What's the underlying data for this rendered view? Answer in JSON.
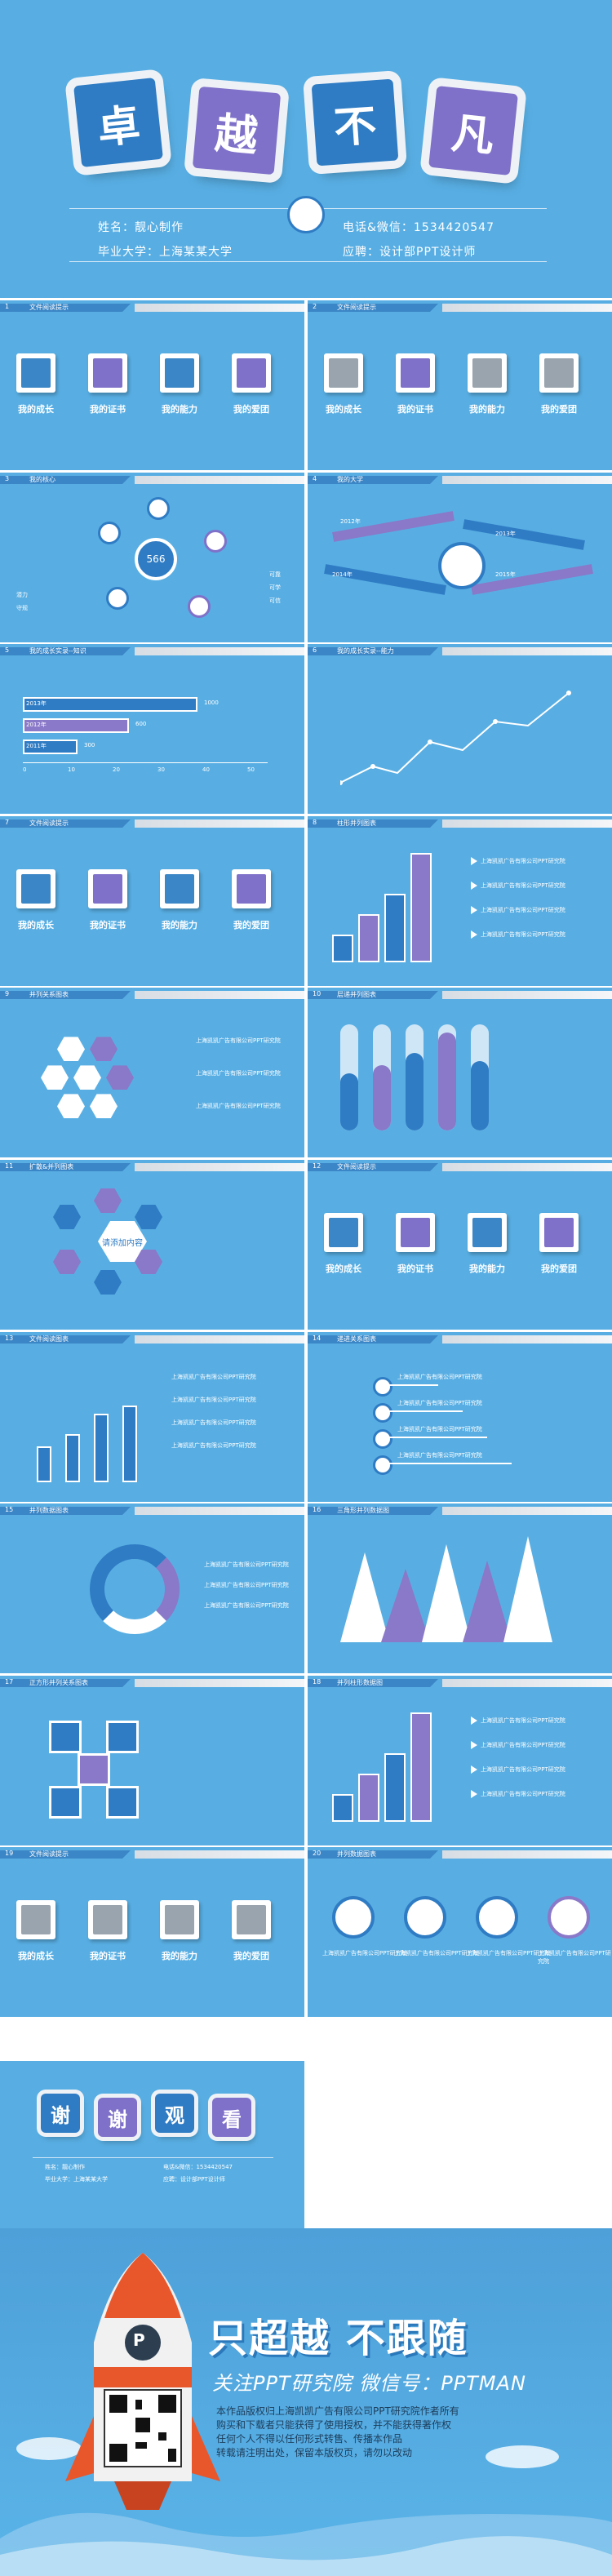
{
  "cover": {
    "tiles": [
      "卓",
      "越",
      "不",
      "凡"
    ],
    "name_label": "姓名：靓心制作",
    "school_label": "毕业大学：上海某某大学",
    "phone_label": "电话&微信：1534420547",
    "job_label": "应聘：设计部PPT设计师"
  },
  "panel_headers": [
    {
      "num": "1",
      "title": "文件阅读提示"
    },
    {
      "num": "2",
      "title": "文件阅读提示"
    },
    {
      "num": "3",
      "title": "我的核心"
    },
    {
      "num": "4",
      "title": "我的大学"
    },
    {
      "num": "5",
      "title": "我的成长实录--知识"
    },
    {
      "num": "6",
      "title": "我的成长实录--能力"
    },
    {
      "num": "7",
      "title": "文件阅读提示"
    },
    {
      "num": "8",
      "title": "柱形并列图表"
    },
    {
      "num": "9",
      "title": "并列关系图表"
    },
    {
      "num": "10",
      "title": "层递并列图表"
    },
    {
      "num": "11",
      "title": "扩散&并列图表"
    },
    {
      "num": "12",
      "title": "文件阅读提示"
    },
    {
      "num": "13",
      "title": "文件阅读图表"
    },
    {
      "num": "14",
      "title": "递进关系图表"
    },
    {
      "num": "15",
      "title": "并列数据图表"
    },
    {
      "num": "16",
      "title": "三角形并列数据图"
    },
    {
      "num": "17",
      "title": "正方形并列关系图表"
    },
    {
      "num": "18",
      "title": "并列柱形数据图"
    },
    {
      "num": "19",
      "title": "文件阅读提示"
    },
    {
      "num": "20",
      "title": "并列数据图表"
    }
  ],
  "icon_labels": [
    "我的成长",
    "我的证书",
    "我的能力",
    "我的爱团"
  ],
  "core": {
    "center": "566",
    "right": [
      "可靠",
      "可学",
      "可信"
    ],
    "left": [
      "潜力",
      "守规"
    ]
  },
  "university": {
    "years": [
      "2012年",
      "2013年",
      "2014年",
      "2015年"
    ]
  },
  "knowledge": {
    "bars": [
      {
        "label": "2013年",
        "value": 1000
      },
      {
        "label": "2012年",
        "value": 600
      },
      {
        "label": "2011年",
        "value": 300
      }
    ],
    "ticks": [
      "0",
      "10",
      "20",
      "30",
      "40",
      "50"
    ]
  },
  "hexcenter": "请添加内容",
  "placeholder_text": "上海凯凯广告有限公司PPT研究院",
  "ending": {
    "tiles": [
      "谢",
      "谢",
      "观",
      "看"
    ],
    "slogan": "只超越 不跟随",
    "sub": "关注PPT研究院 微信号：PPTMAN",
    "note1": "本作品版权归上海凯凯广告有限公司PPT研究院作者所有",
    "note2": "购买和下载者只能获得了使用授权，并不能获得著作权",
    "note3": "任何个人不得以任何形式转售、传播本作品",
    "note4": "转载请注明出处，保留本版权页，请勿以改动",
    "p_label": "P"
  },
  "colors": {
    "bg": "#58aee3",
    "dark": "#1e6eb0",
    "purple": "#8a78c8",
    "lilac": "#b9a7e4"
  }
}
